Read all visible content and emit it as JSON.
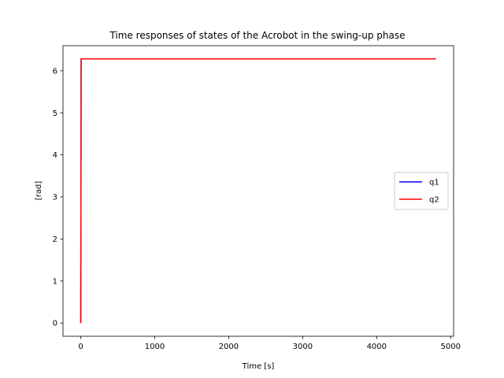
{
  "chart_data": {
    "type": "line",
    "title": "Time responses of states of the Acrobot in the swing-up phase",
    "xlabel": "Time [s]",
    "ylabel": "[rad]",
    "xlim": [
      -240,
      5040
    ],
    "ylim": [
      -0.314,
      6.597
    ],
    "xticks": [
      0,
      1000,
      2000,
      3000,
      4000,
      5000
    ],
    "xtick_labels": [
      "0",
      "1000",
      "2000",
      "3000",
      "4000",
      "5000"
    ],
    "yticks": [
      0,
      1,
      2,
      3,
      4,
      5,
      6
    ],
    "ytick_labels": [
      "0",
      "1",
      "2",
      "3",
      "4",
      "5",
      "6"
    ],
    "grid": false,
    "legend_position": "center-right",
    "series": [
      {
        "name": "q1",
        "color": "#0000ff",
        "x": [
          0,
          5,
          30,
          100,
          1000,
          2000,
          3000,
          4000,
          4800
        ],
        "y": [
          0,
          6.283,
          6.283,
          6.283,
          6.283,
          6.283,
          6.283,
          6.283,
          6.283
        ]
      },
      {
        "name": "q2",
        "color": "#ff0000",
        "x": [
          0,
          5,
          30,
          100,
          1000,
          2000,
          3000,
          4000,
          4800
        ],
        "y": [
          0,
          6.283,
          6.283,
          6.283,
          6.283,
          6.283,
          6.283,
          6.283,
          6.283
        ]
      }
    ]
  }
}
